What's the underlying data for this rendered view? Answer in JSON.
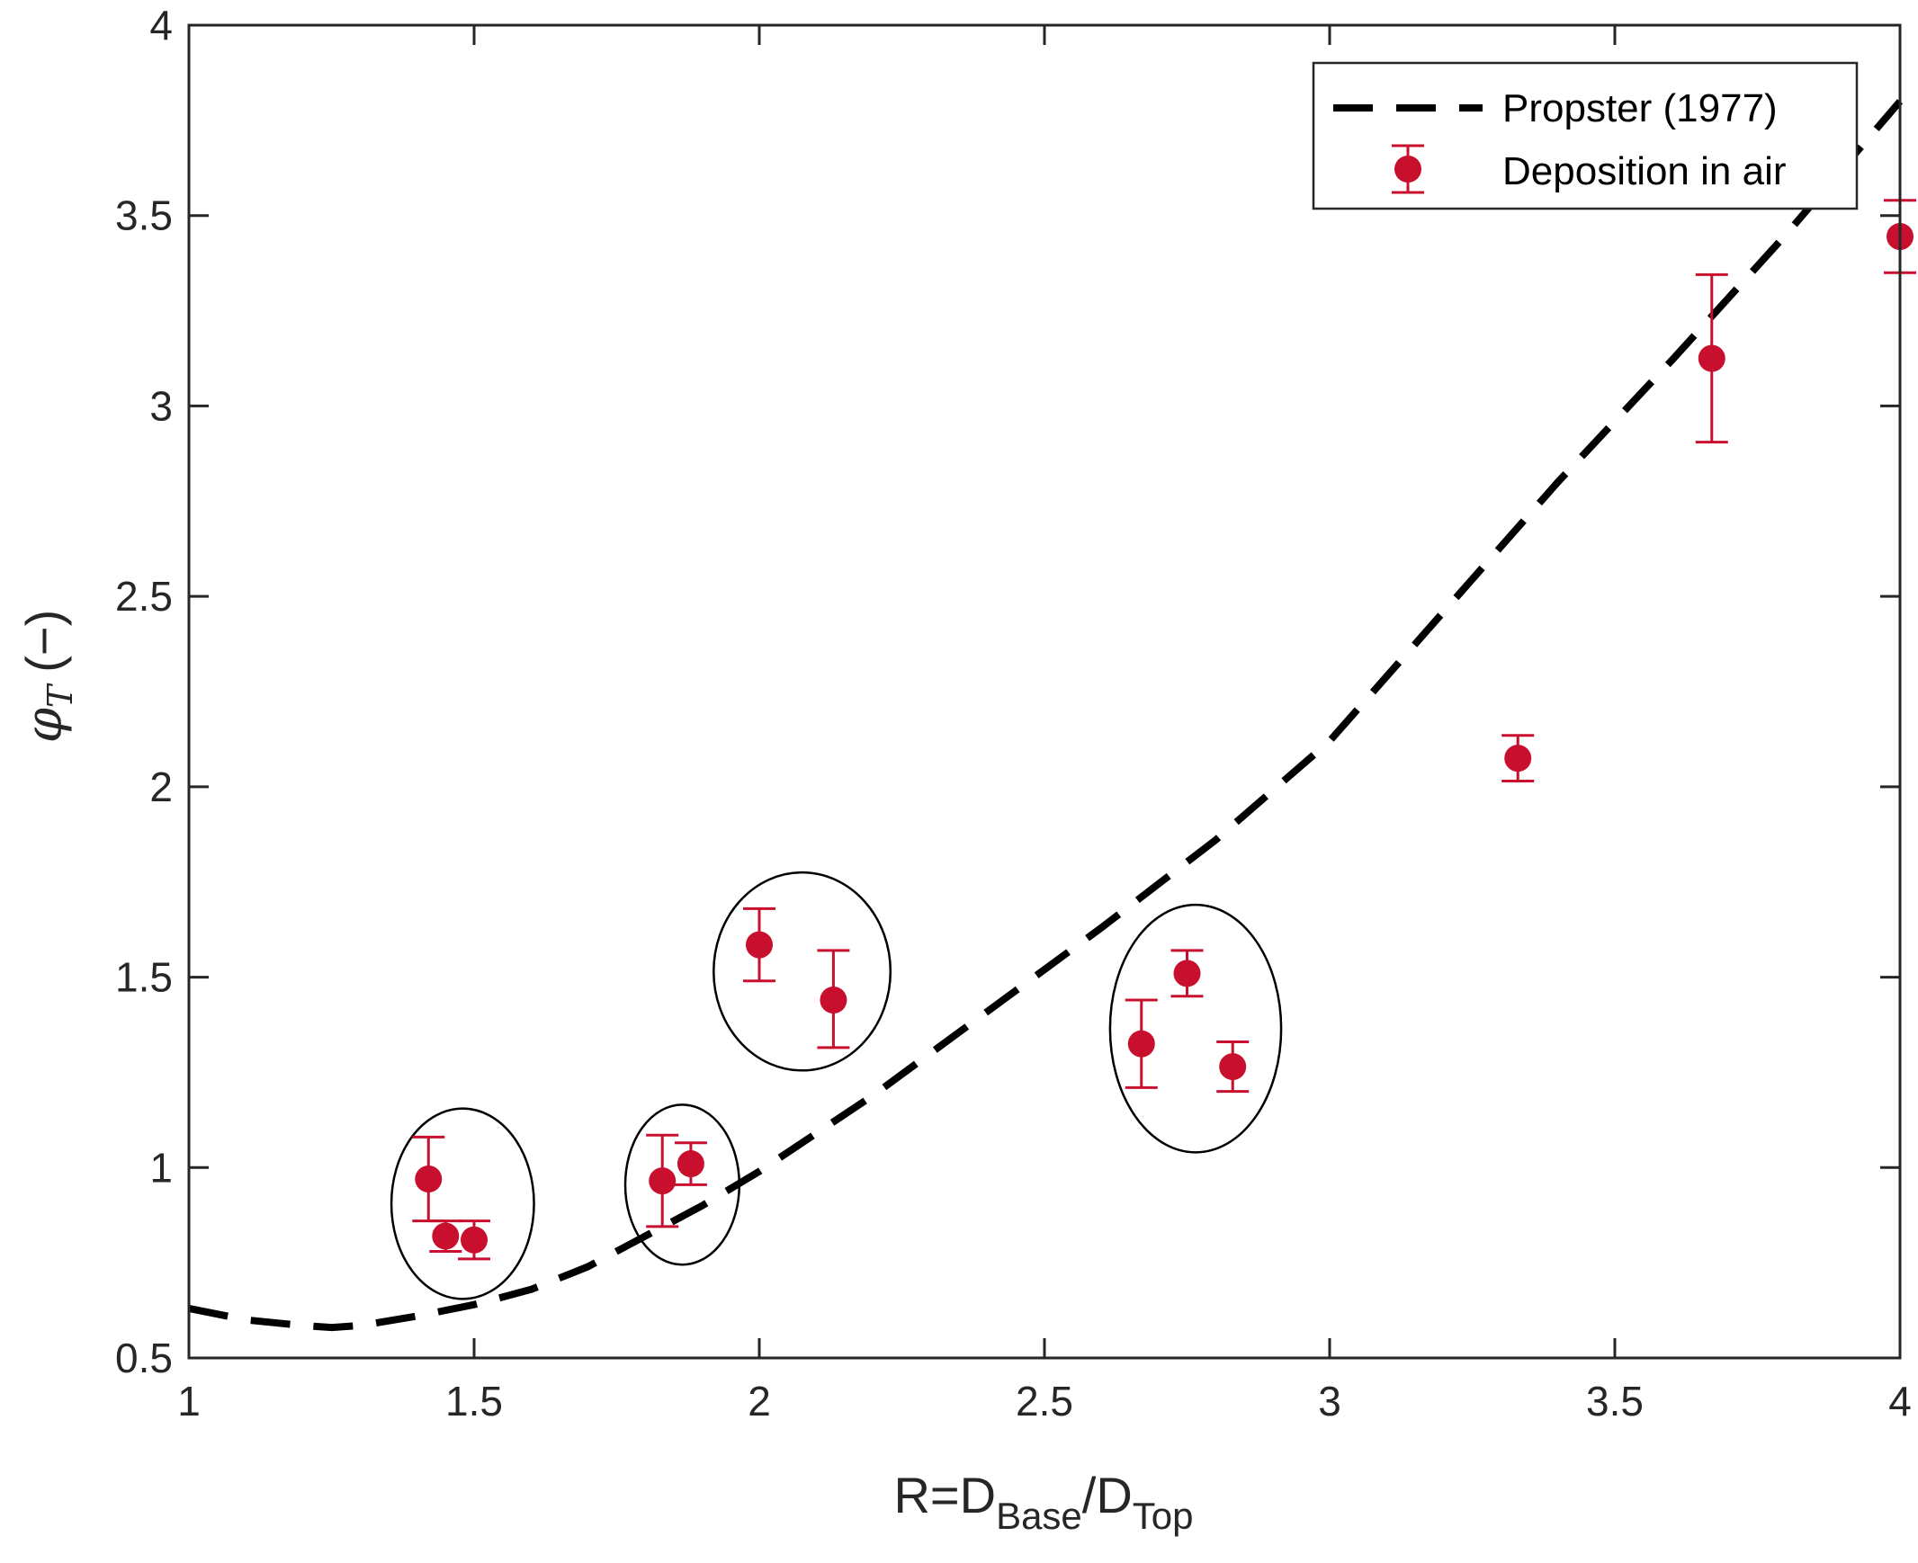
{
  "chart_data": {
    "type": "scatter",
    "title": "",
    "xlabel": {
      "main": "R=D",
      "sub1": "Base",
      "mid": "/D",
      "sub2": "Top"
    },
    "ylabel": {
      "main": "φ",
      "sub": "T",
      "unit": "(−)"
    },
    "xlim": [
      1,
      4
    ],
    "ylim": [
      0.5,
      4
    ],
    "xticks": [
      1,
      1.5,
      2,
      2.5,
      3,
      3.5,
      4
    ],
    "yticks": [
      0.5,
      1,
      1.5,
      2,
      2.5,
      3,
      3.5,
      4
    ],
    "xtick_labels": [
      "1",
      "1.5",
      "2",
      "2.5",
      "3",
      "3.5",
      "4"
    ],
    "ytick_labels": [
      "0.5",
      "1",
      "1.5",
      "2",
      "2.5",
      "3",
      "3.5",
      "4"
    ],
    "grid": false,
    "legend_position": "top-right",
    "series": [
      {
        "name": "Propster (1977)",
        "style": "dashed-line",
        "color": "#000000",
        "x": [
          1.0,
          1.1,
          1.2,
          1.25,
          1.3,
          1.4,
          1.5,
          1.6,
          1.7,
          1.8,
          1.9,
          2.0,
          2.2,
          2.4,
          2.6,
          2.8,
          3.0,
          3.2,
          3.4,
          3.6,
          3.8,
          4.0
        ],
        "y": [
          0.63,
          0.6,
          0.585,
          0.58,
          0.585,
          0.61,
          0.64,
          0.68,
          0.74,
          0.82,
          0.9,
          0.99,
          1.19,
          1.41,
          1.63,
          1.86,
          2.12,
          2.46,
          2.8,
          3.12,
          3.45,
          3.8
        ]
      },
      {
        "name": "Deposition in air",
        "style": "markers-errorbars",
        "color": "#C8102E",
        "x": [
          1.42,
          1.45,
          1.5,
          1.83,
          1.88,
          2.0,
          2.13,
          2.67,
          2.75,
          2.83,
          3.33,
          3.67,
          4.0
        ],
        "y": [
          0.97,
          0.82,
          0.81,
          0.965,
          1.01,
          1.585,
          1.44,
          1.325,
          1.51,
          1.265,
          2.075,
          3.125,
          3.445
        ],
        "y_low": [
          0.86,
          0.78,
          0.76,
          0.845,
          0.955,
          1.49,
          1.315,
          1.21,
          1.45,
          1.2,
          2.015,
          2.905,
          3.35
        ],
        "y_high": [
          1.08,
          0.86,
          0.86,
          1.085,
          1.065,
          1.68,
          1.57,
          1.44,
          1.57,
          1.33,
          2.135,
          3.345,
          3.54
        ]
      }
    ],
    "annotations": [
      {
        "type": "ellipse",
        "cx": 1.48,
        "cy": 0.905,
        "rx": 0.125,
        "ry": 0.25
      },
      {
        "type": "ellipse",
        "cx": 1.865,
        "cy": 0.955,
        "rx": 0.1,
        "ry": 0.21
      },
      {
        "type": "ellipse",
        "cx": 2.075,
        "cy": 1.515,
        "rx": 0.155,
        "ry": 0.26
      },
      {
        "type": "ellipse",
        "cx": 2.765,
        "cy": 1.365,
        "rx": 0.15,
        "ry": 0.325
      }
    ]
  }
}
